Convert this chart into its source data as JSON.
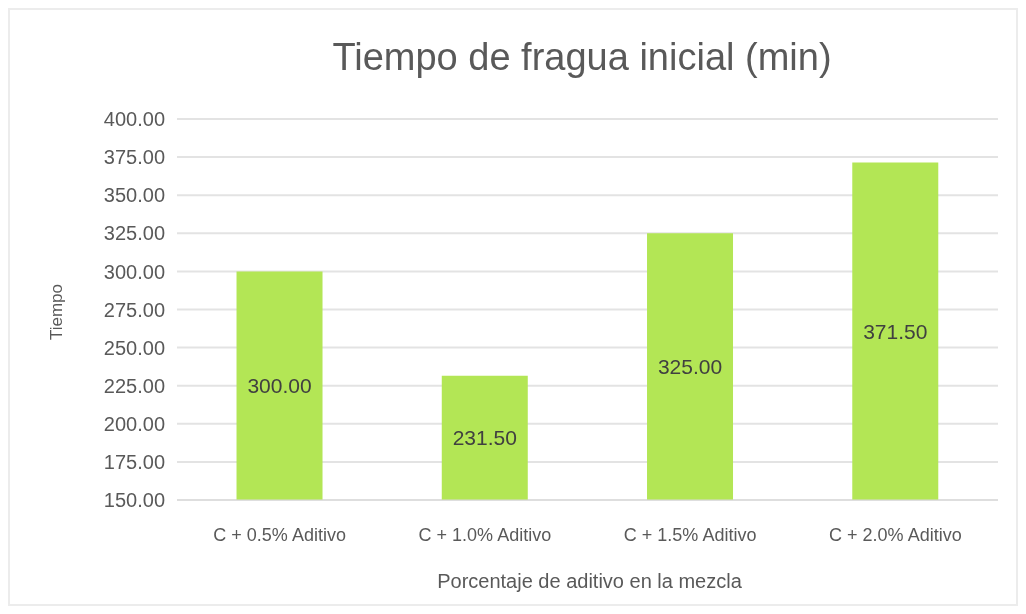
{
  "chart_data": {
    "type": "bar",
    "title": "Tiempo de fragua inicial (min)",
    "xlabel": "Porcentaje de aditivo en la mezcla",
    "ylabel": "Tiempo",
    "categories": [
      "C + 0.5% Aditivo",
      "C + 1.0% Aditivo",
      "C + 1.5% Aditivo",
      "C + 2.0% Aditivo"
    ],
    "values": [
      300,
      231.5,
      325,
      371.5
    ],
    "color": "#b3e655",
    "value_labels": [
      "300.00",
      "231.50",
      "325.00",
      "371.50"
    ],
    "ylim": [
      150,
      400
    ],
    "yticks": [
      {
        "value": 150,
        "label": "150.00"
      },
      {
        "value": 175,
        "label": "175.00"
      },
      {
        "value": 200,
        "label": "200.00"
      },
      {
        "value": 225,
        "label": "225.00"
      },
      {
        "value": 250,
        "label": "250.00"
      },
      {
        "value": 275,
        "label": "275.00"
      },
      {
        "value": 300,
        "label": "300.00"
      },
      {
        "value": 325,
        "label": "325.00"
      },
      {
        "value": 350,
        "label": "350.00"
      },
      {
        "value": 375,
        "label": "375.00"
      },
      {
        "value": 400,
        "label": "400.00"
      }
    ],
    "grid": "y"
  }
}
